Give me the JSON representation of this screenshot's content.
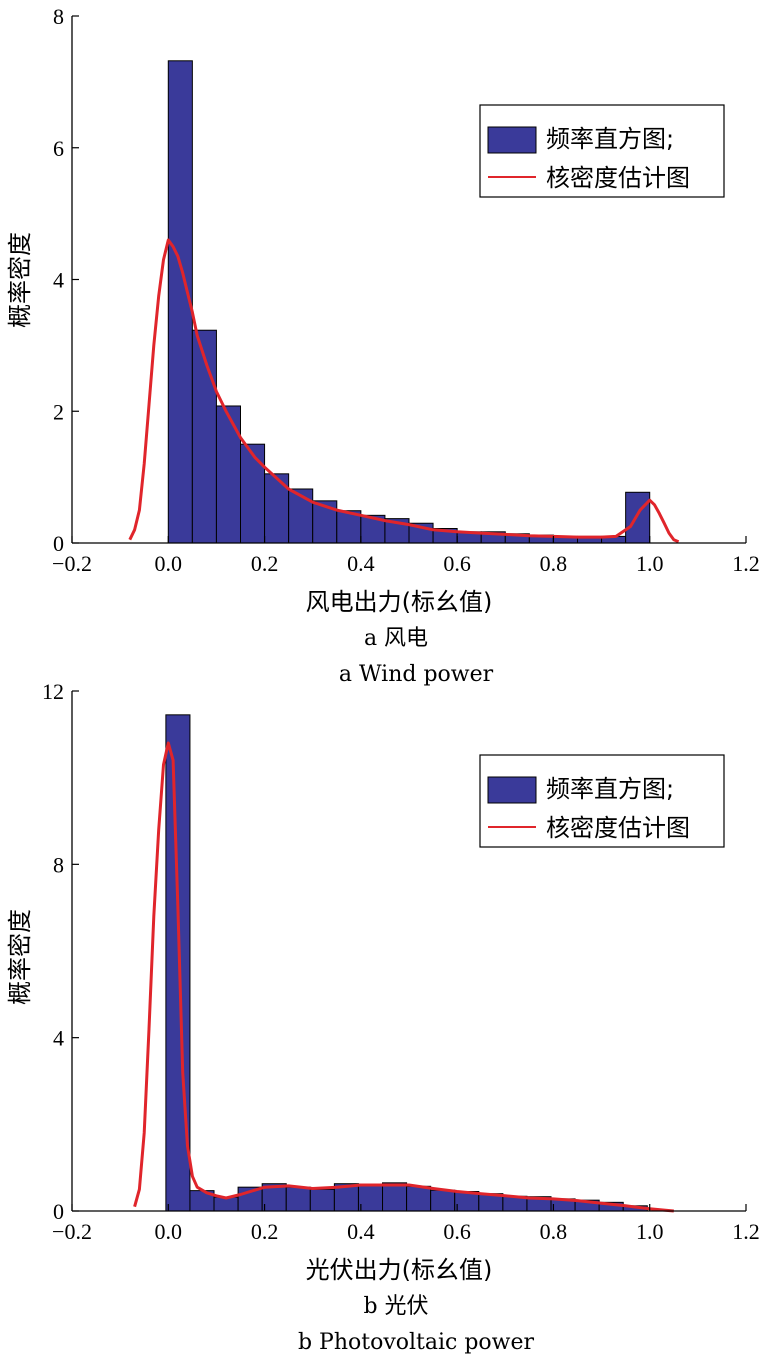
{
  "colors": {
    "bar": "#3a3a9a",
    "bar_edge": "#000000",
    "kde": "#e0252b",
    "axis": "#000000"
  },
  "chart_data": [
    {
      "type": "bar",
      "xlabel": "风电出力(标幺值)",
      "ylabel": "概率密度",
      "caption_cn": "a 风电",
      "caption_en": "a Wind power",
      "xlim": [
        -0.2,
        1.2
      ],
      "ylim": [
        0,
        8
      ],
      "x_ticks": [
        "−0.2",
        "0.0",
        "0.2",
        "0.4",
        "0.6",
        "0.8",
        "1.0",
        "1.2"
      ],
      "y_ticks": [
        "0",
        "2",
        "4",
        "6",
        "8"
      ],
      "y_tick_values": [
        0,
        2,
        4,
        6,
        8
      ],
      "legend_position": "top-right",
      "series": [
        {
          "name": "频率直方图;",
          "type": "histogram",
          "bin_edges": [
            0.0,
            0.05,
            0.1,
            0.15,
            0.2,
            0.25,
            0.3,
            0.35,
            0.4,
            0.45,
            0.5,
            0.55,
            0.6,
            0.65,
            0.7,
            0.75,
            0.8,
            0.85,
            0.9,
            0.95,
            1.0
          ],
          "values": [
            7.32,
            3.23,
            2.08,
            1.5,
            1.05,
            0.82,
            0.64,
            0.49,
            0.42,
            0.37,
            0.3,
            0.22,
            0.17,
            0.17,
            0.14,
            0.12,
            0.1,
            0.1,
            0.1,
            0.77
          ]
        },
        {
          "name": "核密度估计图",
          "type": "line",
          "x": [
            -0.08,
            -0.07,
            -0.06,
            -0.05,
            -0.04,
            -0.03,
            -0.02,
            -0.01,
            0.0,
            0.01,
            0.02,
            0.03,
            0.04,
            0.05,
            0.06,
            0.08,
            0.1,
            0.12,
            0.15,
            0.18,
            0.2,
            0.25,
            0.3,
            0.35,
            0.4,
            0.45,
            0.5,
            0.55,
            0.6,
            0.65,
            0.7,
            0.75,
            0.8,
            0.85,
            0.9,
            0.93,
            0.96,
            0.98,
            1.0,
            1.01,
            1.02,
            1.03,
            1.04,
            1.05,
            1.06
          ],
          "y": [
            0.05,
            0.2,
            0.5,
            1.2,
            2.1,
            3.0,
            3.75,
            4.3,
            4.6,
            4.5,
            4.35,
            4.1,
            3.8,
            3.5,
            3.15,
            2.7,
            2.3,
            2.0,
            1.6,
            1.3,
            1.15,
            0.82,
            0.62,
            0.5,
            0.42,
            0.34,
            0.28,
            0.2,
            0.17,
            0.15,
            0.13,
            0.11,
            0.1,
            0.09,
            0.09,
            0.1,
            0.25,
            0.5,
            0.65,
            0.58,
            0.45,
            0.3,
            0.15,
            0.05,
            0.02
          ]
        }
      ]
    },
    {
      "type": "bar",
      "xlabel": "光伏出力(标幺值)",
      "ylabel": "概率密度",
      "caption_cn": "b 光伏",
      "caption_en": "b Photovoltaic power",
      "xlim": [
        -0.2,
        1.2
      ],
      "ylim": [
        0,
        12
      ],
      "x_ticks": [
        "−0.2",
        "0.0",
        "0.2",
        "0.4",
        "0.6",
        "0.8",
        "1.0",
        "1.2"
      ],
      "y_ticks": [
        "0",
        "4",
        "8",
        "12"
      ],
      "y_tick_values": [
        0,
        4,
        8,
        12
      ],
      "legend_position": "top-right",
      "series": [
        {
          "name": "频率直方图;",
          "type": "histogram",
          "bin_edges": [
            -0.005,
            0.045,
            0.095,
            0.145,
            0.195,
            0.245,
            0.295,
            0.345,
            0.395,
            0.445,
            0.495,
            0.545,
            0.595,
            0.645,
            0.695,
            0.745,
            0.795,
            0.845,
            0.895,
            0.945,
            0.995
          ],
          "values": [
            11.45,
            0.47,
            0.32,
            0.55,
            0.63,
            0.55,
            0.5,
            0.63,
            0.62,
            0.65,
            0.57,
            0.48,
            0.45,
            0.4,
            0.34,
            0.33,
            0.28,
            0.25,
            0.2,
            0.12
          ]
        },
        {
          "name": "核密度估计图",
          "type": "line",
          "x": [
            -0.07,
            -0.06,
            -0.05,
            -0.04,
            -0.03,
            -0.02,
            -0.01,
            0.0,
            0.01,
            0.02,
            0.03,
            0.04,
            0.05,
            0.06,
            0.08,
            0.1,
            0.12,
            0.15,
            0.2,
            0.25,
            0.3,
            0.35,
            0.4,
            0.45,
            0.5,
            0.55,
            0.6,
            0.65,
            0.7,
            0.75,
            0.8,
            0.85,
            0.9,
            0.95,
            1.0,
            1.03,
            1.05
          ],
          "y": [
            0.1,
            0.5,
            1.8,
            4.2,
            6.8,
            8.8,
            10.3,
            10.8,
            10.4,
            7.0,
            3.2,
            1.5,
            0.8,
            0.55,
            0.42,
            0.35,
            0.3,
            0.38,
            0.55,
            0.58,
            0.52,
            0.55,
            0.6,
            0.6,
            0.6,
            0.52,
            0.45,
            0.4,
            0.35,
            0.3,
            0.28,
            0.24,
            0.18,
            0.12,
            0.05,
            0.02,
            0.0
          ]
        }
      ]
    }
  ]
}
